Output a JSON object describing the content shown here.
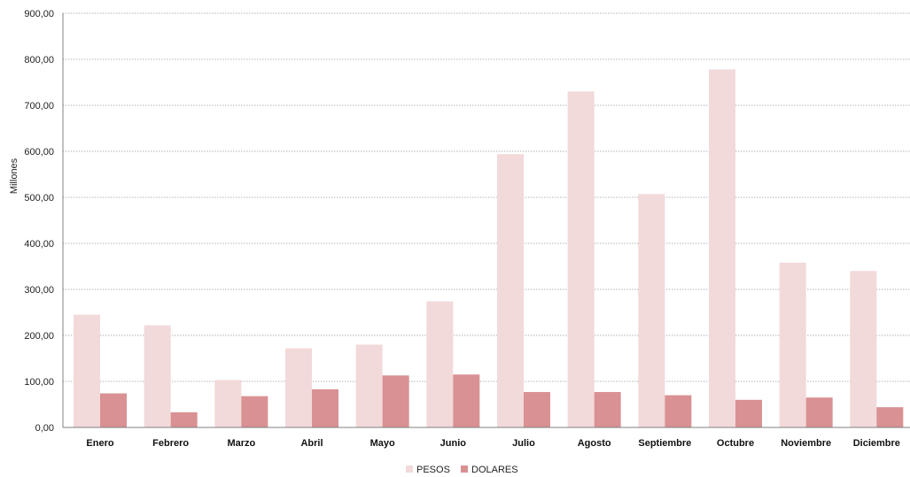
{
  "chart_data": {
    "type": "bar",
    "ylabel": "Millones",
    "ylim": [
      0,
      900
    ],
    "yticks": [
      0,
      100,
      200,
      300,
      400,
      500,
      600,
      700,
      800,
      900
    ],
    "ytick_labels": [
      "0,00",
      "100,00",
      "200,00",
      "300,00",
      "400,00",
      "500,00",
      "600,00",
      "700,00",
      "800,00",
      "900,00"
    ],
    "grid": true,
    "legend_position": "bottom",
    "categories": [
      "Enero",
      "Febrero",
      "Marzo",
      "Abril",
      "Mayo",
      "Junio",
      "Julio",
      "Agosto",
      "Septiembre",
      "Octubre",
      "Noviembre",
      "Diciembre"
    ],
    "series": [
      {
        "name": "PESOS",
        "color": "#f2d9da",
        "values": [
          245,
          222,
          103,
          172,
          180,
          274,
          594,
          730,
          507,
          778,
          358,
          340
        ]
      },
      {
        "name": "DOLARES",
        "color": "#d99193",
        "values": [
          74,
          33,
          68,
          83,
          113,
          115,
          77,
          77,
          70,
          60,
          65,
          44
        ]
      }
    ]
  }
}
